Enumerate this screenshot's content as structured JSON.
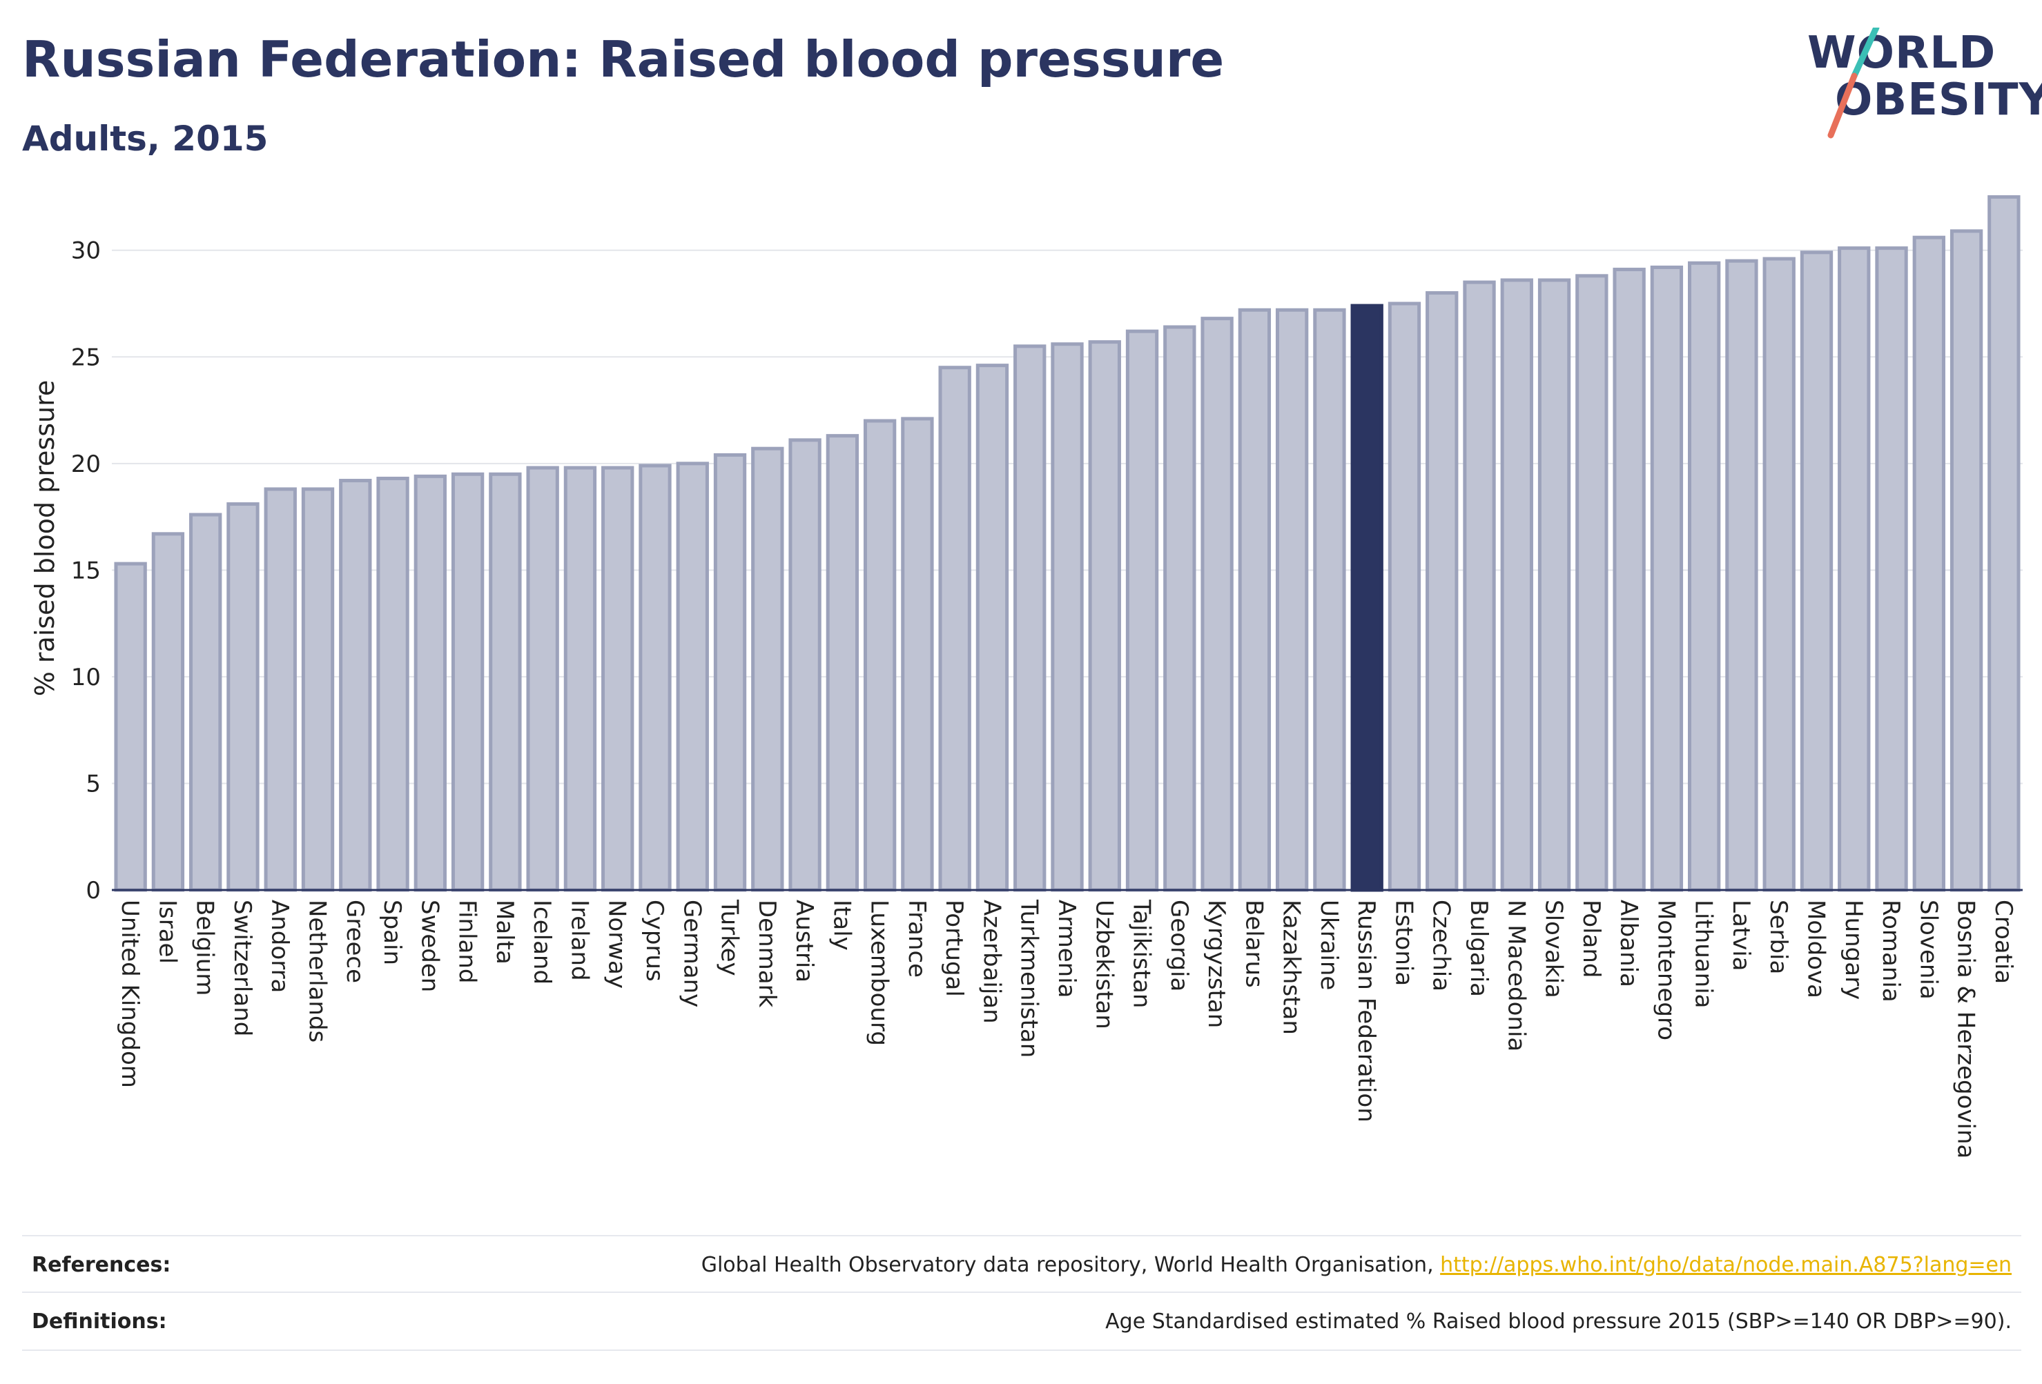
{
  "header": {
    "title": "Russian Federation: Raised blood pressure",
    "subtitle": "Adults, 2015"
  },
  "logo": {
    "line1": "WORLD",
    "line2": "OBESITY"
  },
  "footer": {
    "references_label": "References:",
    "references_text": "Global Health Observatory data repository, World Health Organisation, ",
    "references_link": "http://apps.who.int/gho/data/node.main.A875?lang=en",
    "definitions_label": "Definitions:",
    "definitions_text": "Age Standardised estimated % Raised blood pressure 2015 (SBP>=140 OR DBP>=90)."
  },
  "colors": {
    "highlight": "#2b3561",
    "bar_fill": "#bfc3d3",
    "bar_stroke": "#9ca2bb",
    "logo_accent_teal": "#3bbfb5",
    "logo_accent_coral": "#e8705a"
  },
  "chart_data": {
    "type": "bar",
    "title": "",
    "xlabel": "",
    "ylabel": "% raised blood pressure",
    "ylim": [
      0,
      33
    ],
    "yticks": [
      0,
      5,
      10,
      15,
      20,
      25,
      30
    ],
    "grid": true,
    "highlight_category": "Russian Federation",
    "categories": [
      "United Kingdom",
      "Israel",
      "Belgium",
      "Switzerland",
      "Andorra",
      "Netherlands",
      "Greece",
      "Spain",
      "Sweden",
      "Finland",
      "Malta",
      "Iceland",
      "Ireland",
      "Norway",
      "Cyprus",
      "Germany",
      "Turkey",
      "Denmark",
      "Austria",
      "Italy",
      "Luxembourg",
      "France",
      "Portugal",
      "Azerbaijan",
      "Turkmenistan",
      "Armenia",
      "Uzbekistan",
      "Tajikistan",
      "Georgia",
      "Kyrgyzstan",
      "Belarus",
      "Kazakhstan",
      "Ukraine",
      "Russian Federation",
      "Estonia",
      "Czechia",
      "Bulgaria",
      "N Macedonia",
      "Slovakia",
      "Poland",
      "Albania",
      "Montenegro",
      "Lithuania",
      "Latvia",
      "Serbia",
      "Moldova",
      "Hungary",
      "Romania",
      "Slovenia",
      "Bosnia & Herzegovina",
      "Croatia"
    ],
    "values": [
      15.3,
      16.7,
      17.6,
      18.1,
      18.8,
      18.8,
      19.2,
      19.3,
      19.4,
      19.5,
      19.5,
      19.8,
      19.8,
      19.8,
      19.9,
      20.0,
      20.4,
      20.7,
      21.1,
      21.3,
      22.0,
      22.1,
      24.5,
      24.6,
      25.5,
      25.6,
      25.7,
      26.2,
      26.4,
      26.8,
      27.2,
      27.2,
      27.2,
      27.4,
      27.5,
      28.0,
      28.5,
      28.6,
      28.6,
      28.8,
      29.1,
      29.2,
      29.4,
      29.5,
      29.6,
      29.9,
      30.1,
      30.1,
      30.6,
      30.9,
      32.5
    ]
  }
}
